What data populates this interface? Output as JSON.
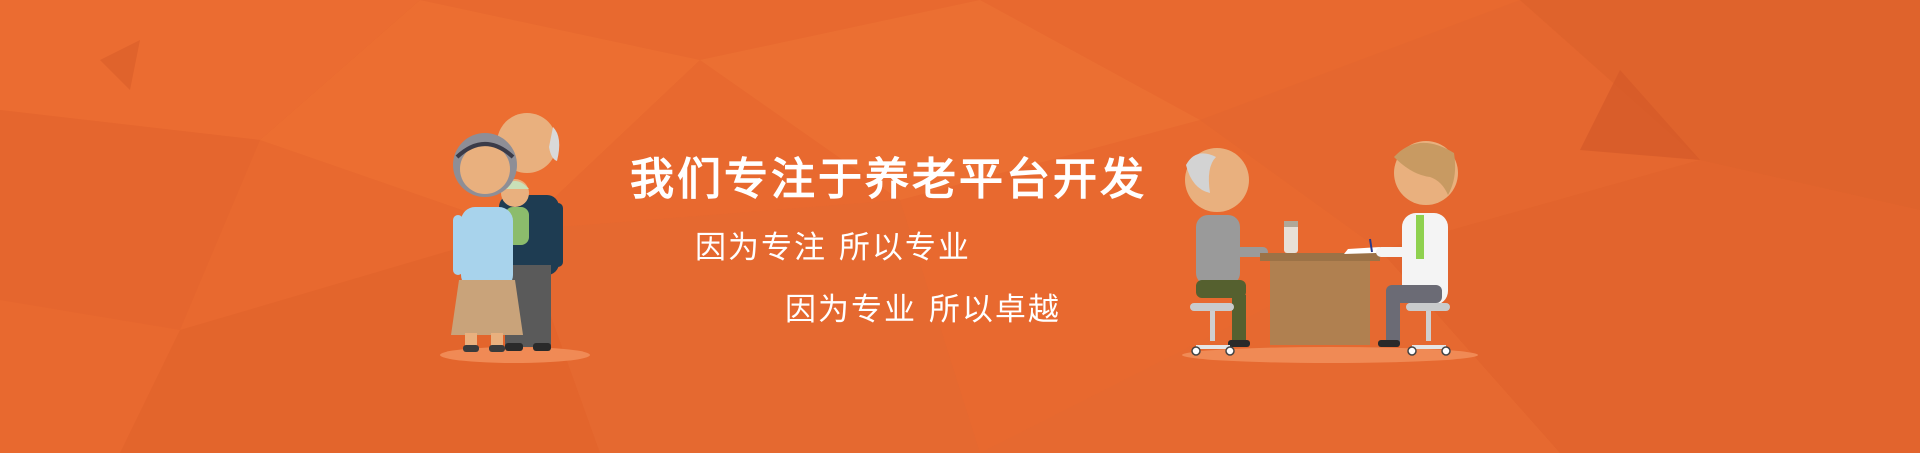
{
  "banner": {
    "headline": "我们专注于养老平台开发",
    "subline_1": "因为专注  所以专业",
    "subline_2": "因为专业  所以卓越"
  },
  "colors": {
    "background": "#e8692f",
    "text": "#ffffff"
  },
  "illustrations": {
    "left": "elderly-family-illustration",
    "right": "doctor-consultation-illustration"
  }
}
